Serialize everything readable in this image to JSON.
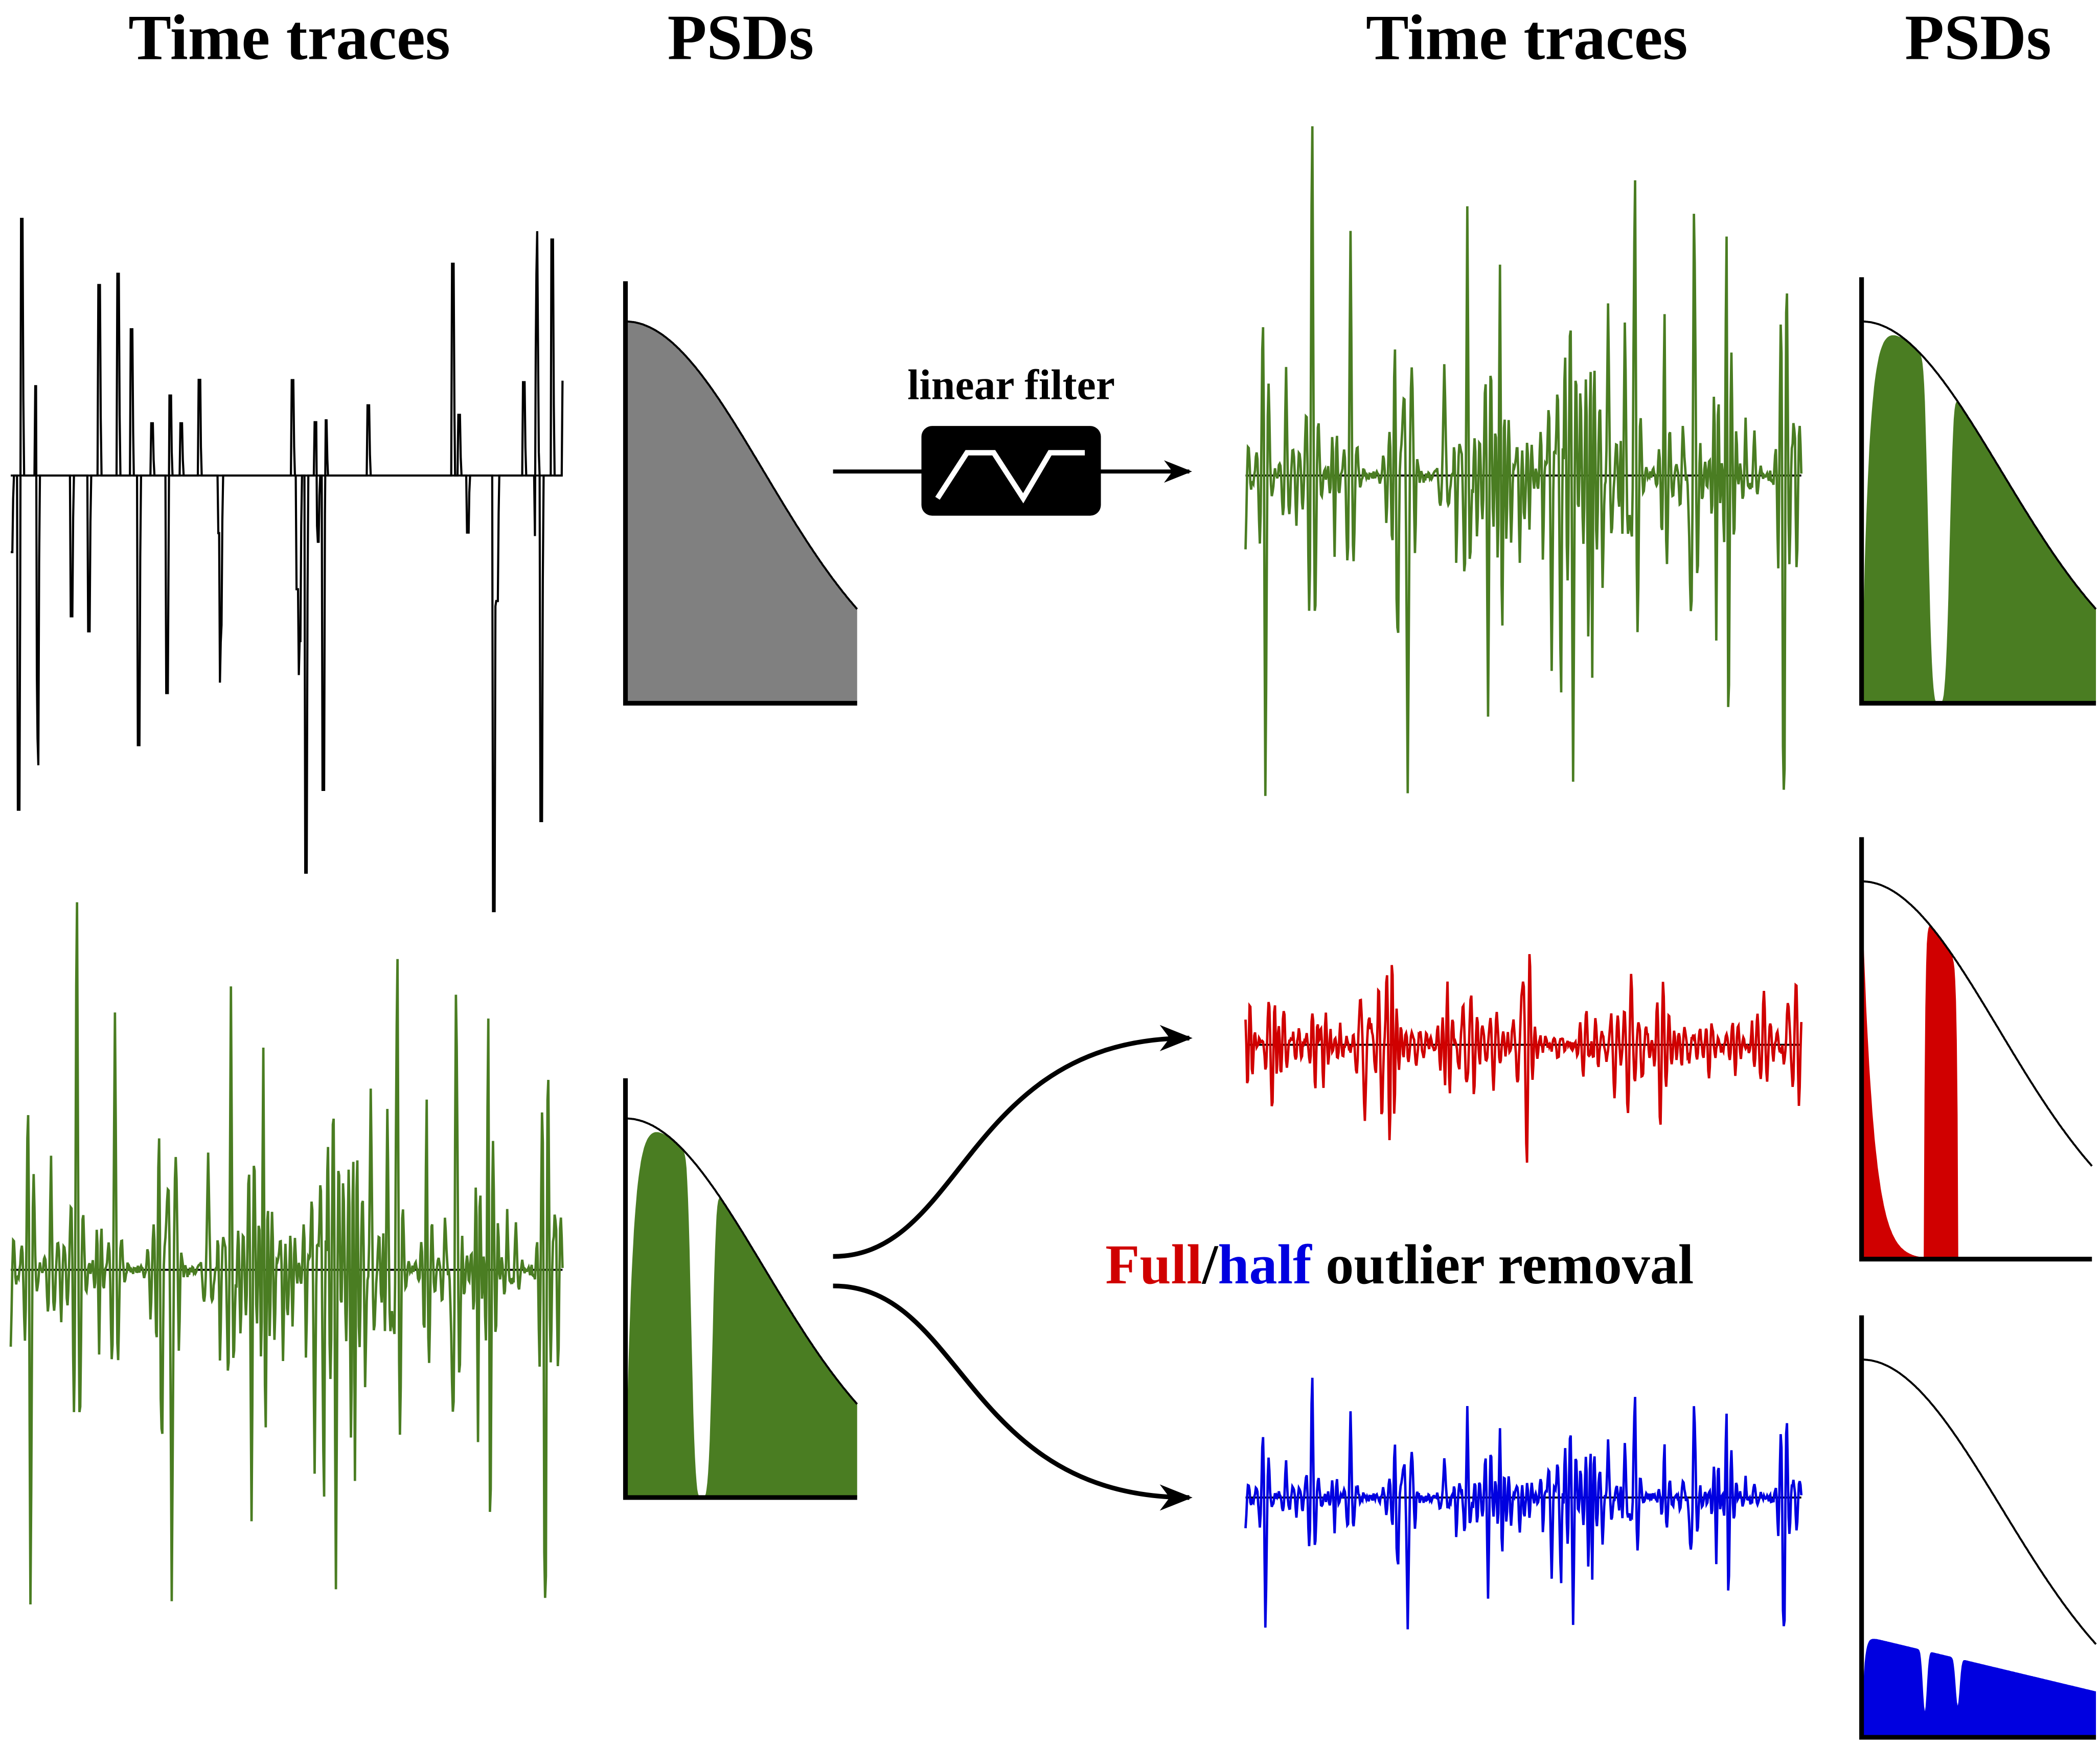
{
  "header": {
    "left": {
      "time_traces": "Time traces",
      "psds": "PSDs"
    },
    "right": {
      "time_traces": "Time traces",
      "psds": "PSDs"
    }
  },
  "filter_label": "linear filter",
  "removal_label": {
    "full": "Full",
    "separator": "/",
    "half": "half",
    "rest": "outlier removal"
  }
}
